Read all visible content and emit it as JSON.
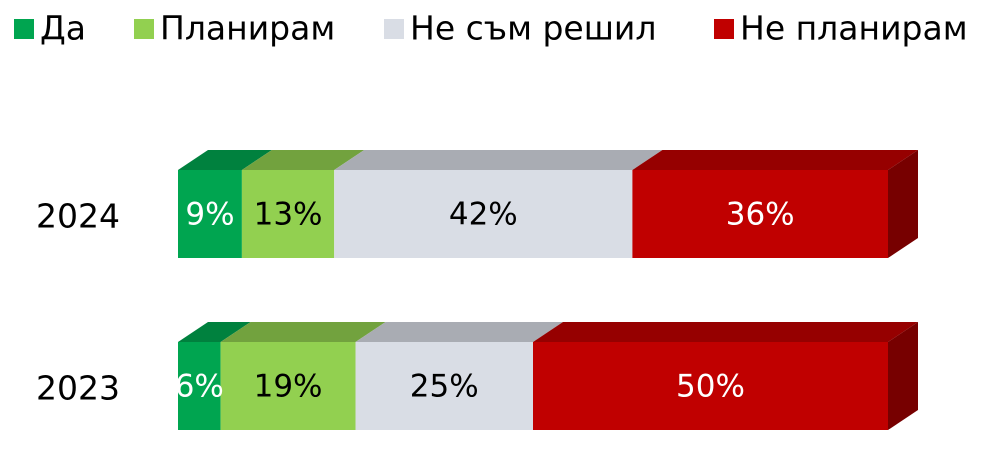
{
  "chart_data": {
    "type": "stacked-bar-3d",
    "categories": [
      "2024",
      "2023"
    ],
    "series": [
      {
        "name": "Да",
        "color": "#00a550",
        "values": [
          9,
          6
        ],
        "value_labels": [
          "9%",
          "6%"
        ]
      },
      {
        "name": "Планирам",
        "color": "#92d050",
        "values": [
          13,
          19
        ],
        "value_labels": [
          "13%",
          "19%"
        ]
      },
      {
        "name": "Не съм решил",
        "color": "#d9dde5",
        "values": [
          42,
          25
        ],
        "value_labels": [
          "42%",
          "25%"
        ]
      },
      {
        "name": "Не планирам",
        "color": "#c00000",
        "values": [
          36,
          50
        ],
        "value_labels": [
          "36%",
          "50%"
        ]
      }
    ],
    "legend": "top"
  }
}
